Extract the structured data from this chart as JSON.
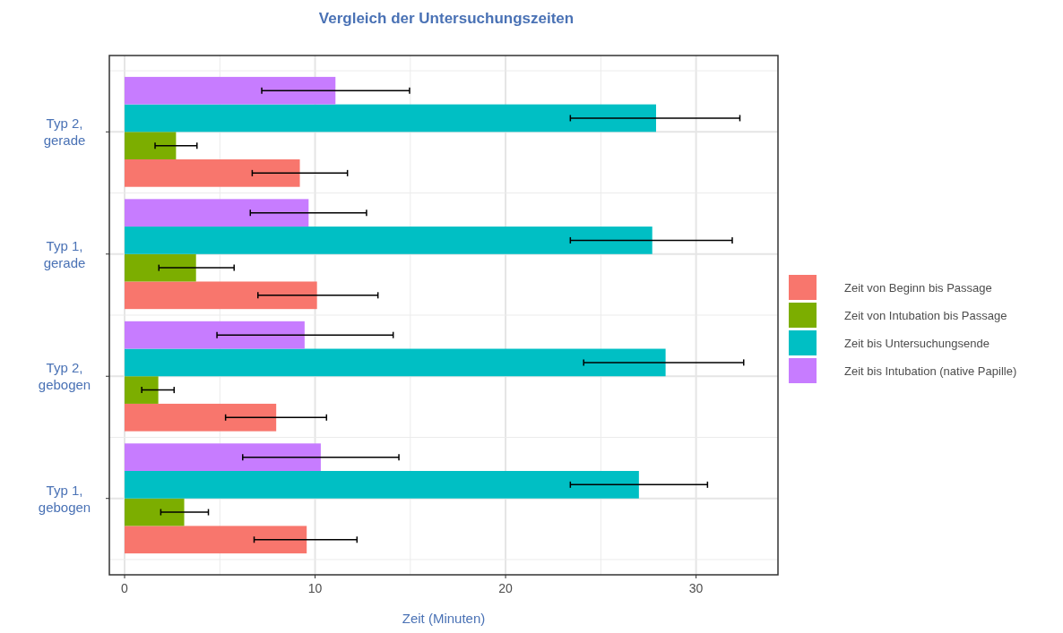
{
  "chart_data": {
    "type": "bar",
    "orientation": "horizontal",
    "title": "Vergleich der Untersuchungszeiten",
    "xlabel": "Zeit (Minuten)",
    "categories": [
      "Typ 2, gerade",
      "Typ 1, gerade",
      "Typ 2, gebogen",
      "Typ 1, gebogen"
    ],
    "series": [
      {
        "name": "Zeit von Beginn bis Passage",
        "color": "#f8766d",
        "values": [
          9.2,
          10.1,
          7.96,
          9.56
        ],
        "errors": [
          [
            6.7,
            11.7
          ],
          [
            7.0,
            13.3
          ],
          [
            5.3,
            10.6
          ],
          [
            6.8,
            12.2
          ]
        ]
      },
      {
        "name": "Zeit von Intubation bis Passage",
        "color": "#7cae00",
        "values": [
          2.7,
          3.75,
          1.77,
          3.13
        ],
        "errors": [
          [
            1.6,
            3.8
          ],
          [
            1.8,
            5.75
          ],
          [
            0.9,
            2.6
          ],
          [
            1.9,
            4.4
          ]
        ]
      },
      {
        "name": "Zeit bis Untersuchungsende",
        "color": "#00bfc4",
        "values": [
          27.9,
          27.7,
          28.4,
          27.0
        ],
        "errors": [
          [
            23.4,
            32.3
          ],
          [
            23.4,
            31.9
          ],
          [
            24.1,
            32.5
          ],
          [
            23.4,
            30.6
          ]
        ]
      },
      {
        "name": "Zeit bis Intubation (native Papille)",
        "color": "#c77cff",
        "values": [
          11.07,
          9.66,
          9.45,
          10.3
        ],
        "errors": [
          [
            7.2,
            14.96
          ],
          [
            6.6,
            12.7
          ],
          [
            4.85,
            14.1
          ],
          [
            6.2,
            14.4
          ]
        ]
      }
    ],
    "xlim": [
      -0.8,
      34.3
    ],
    "xticks": [
      0,
      10,
      20,
      30
    ],
    "grid": true,
    "legend": "right"
  }
}
